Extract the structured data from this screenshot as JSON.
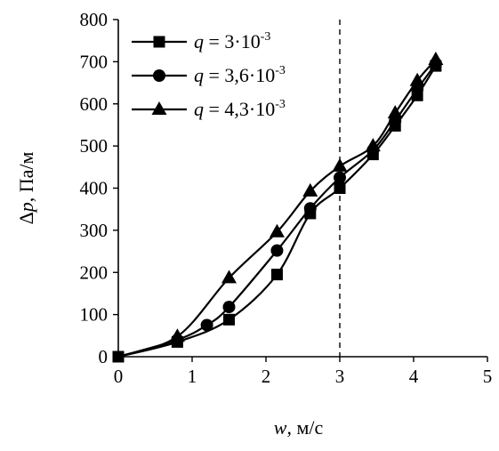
{
  "chart_data": {
    "type": "line",
    "xlabel_var": "w",
    "xlabel_unit": ", м/с",
    "ylabel_var": "Δp",
    "ylabel_unit": ", Па/м",
    "xlim": [
      0,
      5
    ],
    "ylim": [
      0,
      800
    ],
    "xticks": [
      0,
      1,
      2,
      3,
      4,
      5
    ],
    "yticks": [
      0,
      100,
      200,
      300,
      400,
      500,
      600,
      700,
      800
    ],
    "reference_line_x": 3,
    "legend_position": "top-left",
    "series": [
      {
        "name": "q = 3·10-3",
        "legend_var": "q",
        "legend_eq": " = 3·10",
        "legend_exp": "-3",
        "marker": "square",
        "x": [
          0,
          0.8,
          1.5,
          2.15,
          2.6,
          3.0,
          3.45,
          3.75,
          4.05,
          4.3
        ],
        "y": [
          0,
          35,
          88,
          195,
          340,
          400,
          480,
          548,
          620,
          690
        ]
      },
      {
        "name": "q = 3,6·10-3",
        "legend_var": "q",
        "legend_eq": " = 3,6·10",
        "legend_exp": "-3",
        "marker": "circle",
        "x": [
          0,
          0.8,
          1.2,
          1.5,
          2.15,
          2.6,
          3.0,
          3.45,
          3.75,
          4.05,
          4.3
        ],
        "y": [
          0,
          40,
          75,
          118,
          252,
          352,
          425,
          490,
          560,
          635,
          695
        ]
      },
      {
        "name": "q = 4,3·10-3",
        "legend_var": "q",
        "legend_eq": " = 4,3·10",
        "legend_exp": "-3",
        "marker": "triangle",
        "x": [
          0,
          0.8,
          1.5,
          2.15,
          2.6,
          3.0,
          3.45,
          3.75,
          4.05,
          4.3
        ],
        "y": [
          0,
          48,
          187,
          296,
          393,
          452,
          500,
          578,
          655,
          705
        ]
      }
    ]
  }
}
